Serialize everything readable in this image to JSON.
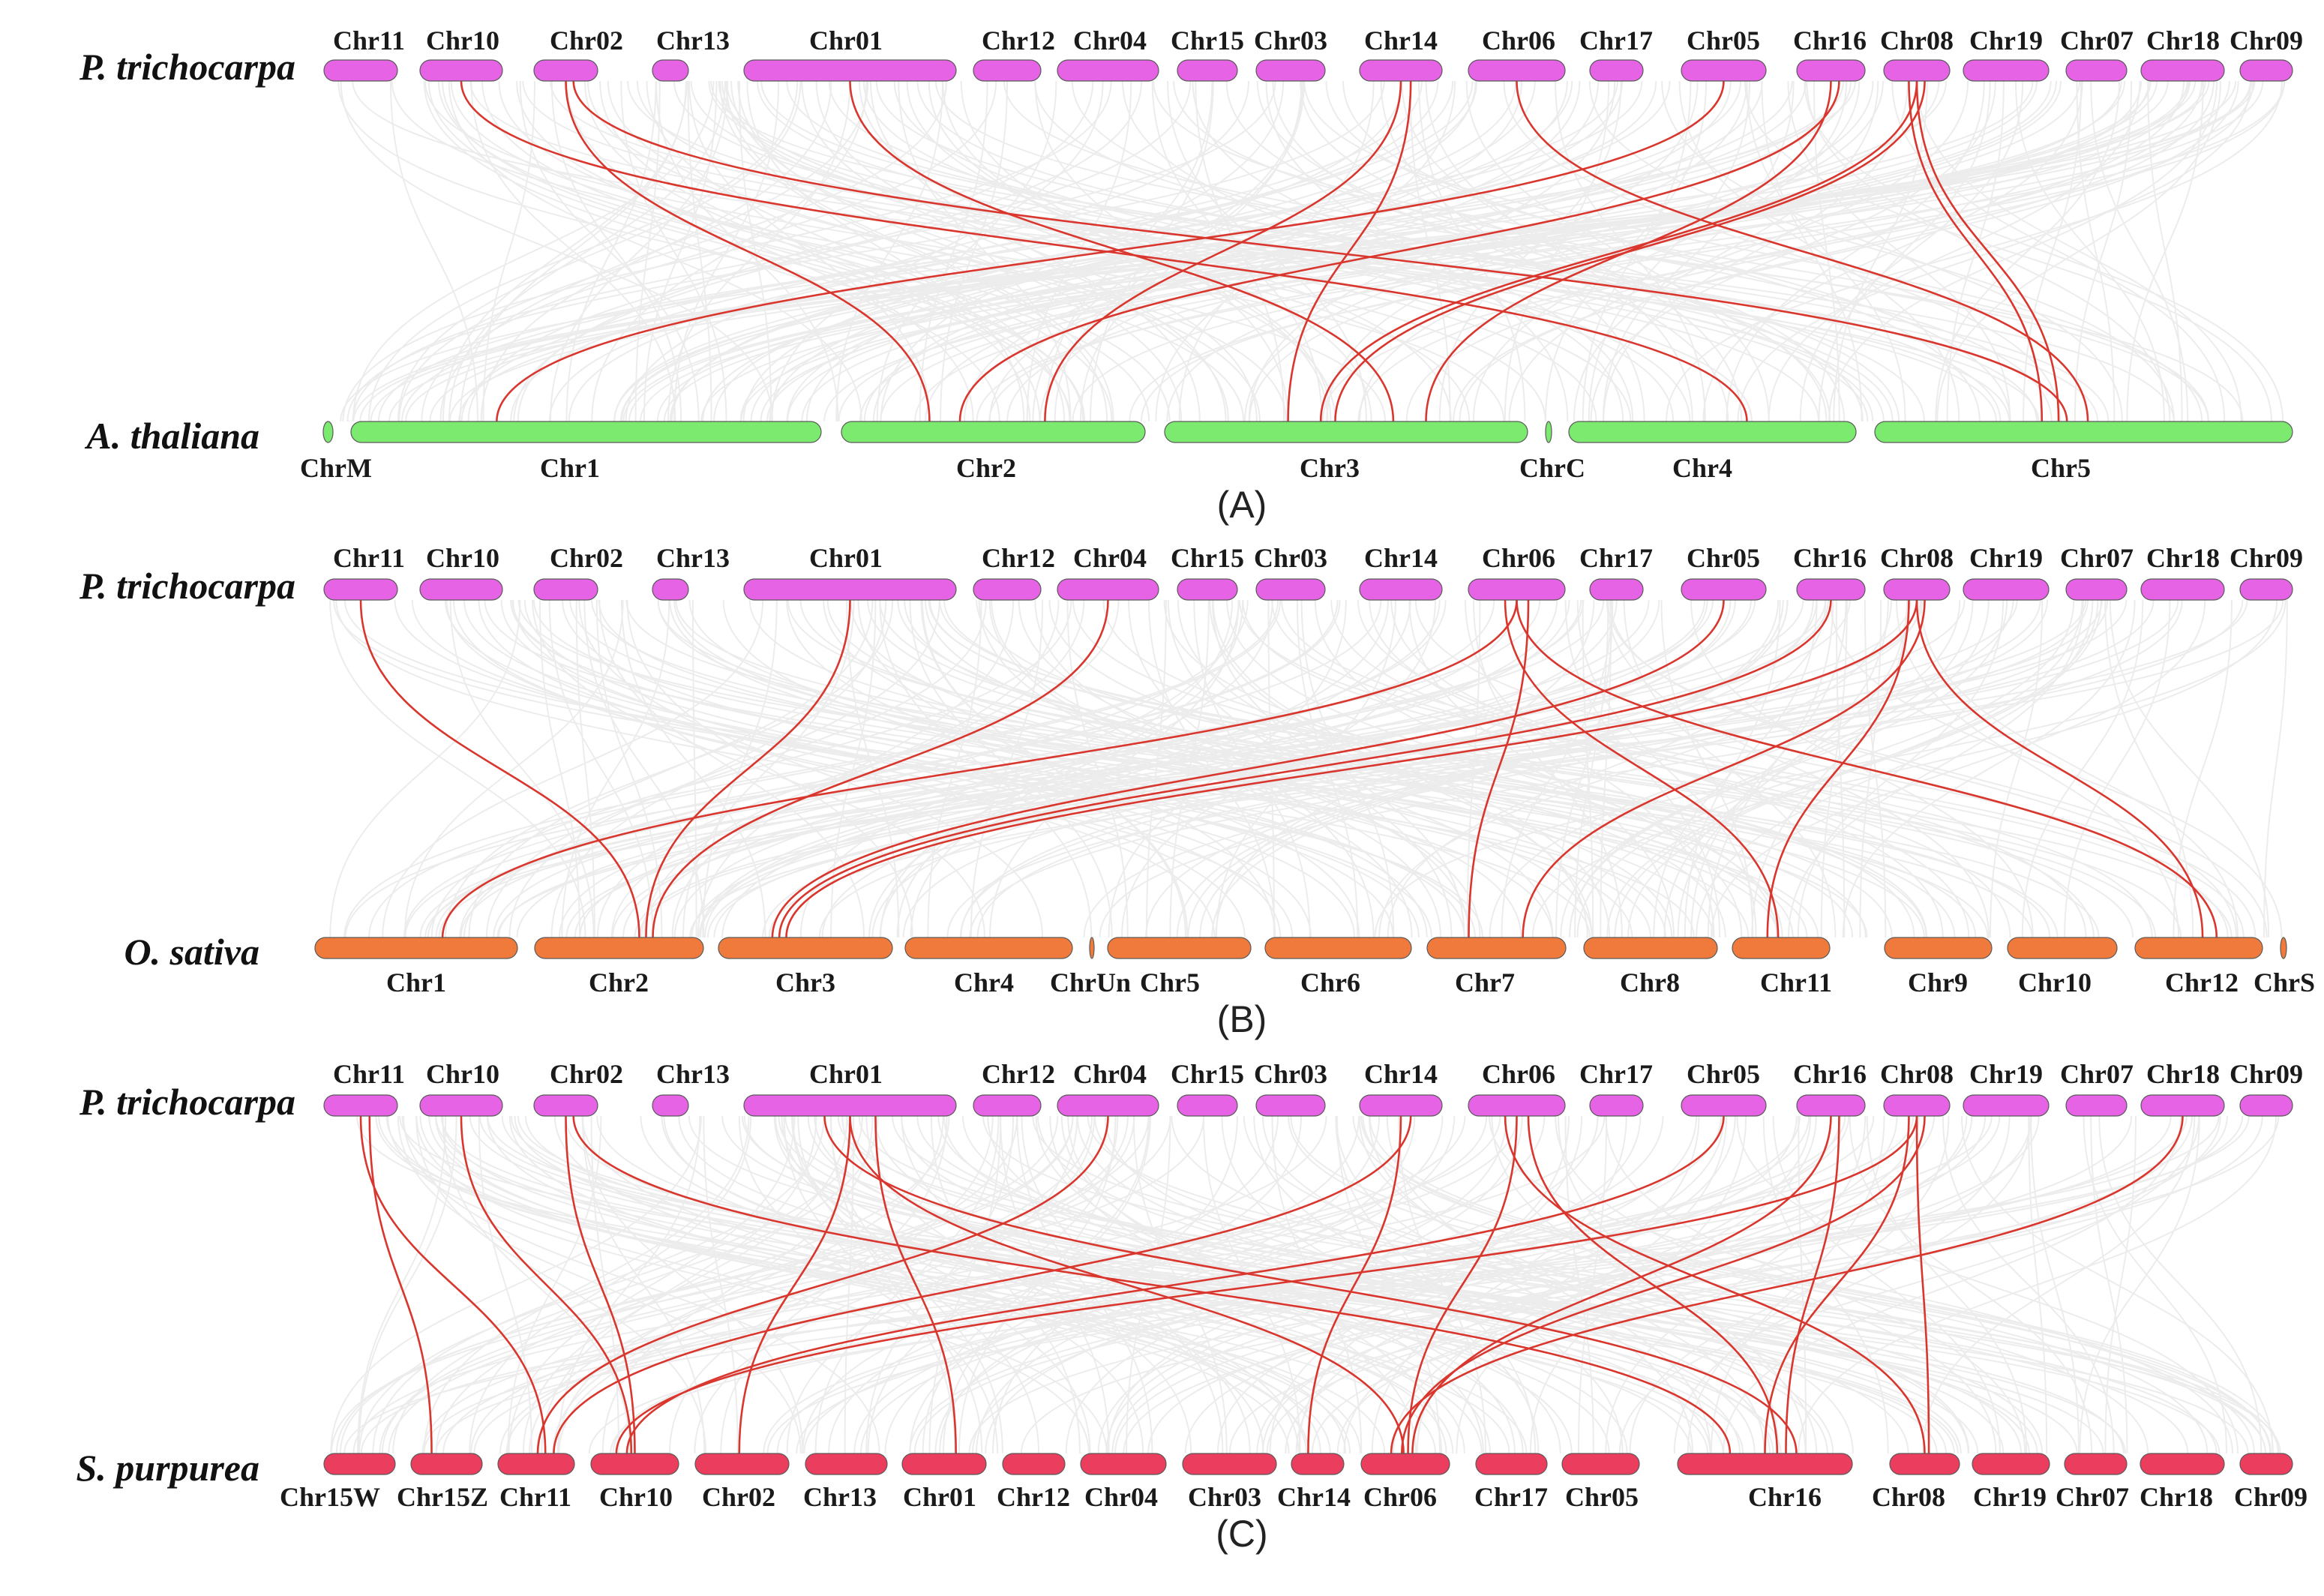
{
  "figure": {
    "panels": [
      {
        "id": "A",
        "label": "(A)",
        "top_species": "P. trichocarpa",
        "bottom_species": "A. thaliana",
        "colors": {
          "top": "#e663e6",
          "bottom": "#7bea6e",
          "background_links": "#dedede",
          "highlight_links": "#d9362e"
        },
        "top_chromosomes": [
          "Chr11",
          "Chr10",
          "Chr02",
          "Chr13",
          "Chr01",
          "Chr12",
          "Chr04",
          "Chr15",
          "Chr03",
          "Chr14",
          "Chr06",
          "Chr17",
          "Chr05",
          "Chr16",
          "Chr08",
          "Chr19",
          "Chr07",
          "Chr18",
          "Chr09"
        ],
        "bottom_chromosomes": [
          "ChrM",
          "Chr1",
          "Chr2",
          "Chr3",
          "ChrC",
          "Chr4",
          "Chr5"
        ],
        "links": [
          {
            "from": "Chr10",
            "to": "Chr4"
          },
          {
            "from": "Chr02",
            "to": "Chr2"
          },
          {
            "from": "Chr02",
            "to": "Chr5"
          },
          {
            "from": "Chr01",
            "to": "Chr3"
          },
          {
            "from": "Chr14",
            "to": "Chr2"
          },
          {
            "from": "Chr14",
            "to": "Chr3"
          },
          {
            "from": "Chr06",
            "to": "Chr5"
          },
          {
            "from": "Chr05",
            "to": "Chr1"
          },
          {
            "from": "Chr16",
            "to": "Chr3"
          },
          {
            "from": "Chr16",
            "to": "Chr2"
          },
          {
            "from": "Chr08",
            "to": "Chr3"
          },
          {
            "from": "Chr08",
            "to": "Chr3"
          },
          {
            "from": "Chr08",
            "to": "Chr5"
          },
          {
            "from": "Chr08",
            "to": "Chr5"
          }
        ]
      },
      {
        "id": "B",
        "label": "(B)",
        "top_species": "P. trichocarpa",
        "bottom_species": "O. sativa",
        "colors": {
          "top": "#e663e6",
          "bottom": "#f07a3c",
          "background_links": "#dedede",
          "highlight_links": "#d9362e"
        },
        "top_chromosomes": [
          "Chr11",
          "Chr10",
          "Chr02",
          "Chr13",
          "Chr01",
          "Chr12",
          "Chr04",
          "Chr15",
          "Chr03",
          "Chr14",
          "Chr06",
          "Chr17",
          "Chr05",
          "Chr16",
          "Chr08",
          "Chr19",
          "Chr07",
          "Chr18",
          "Chr09"
        ],
        "bottom_chromosomes": [
          "Chr1",
          "Chr2",
          "Chr3",
          "Chr4",
          "ChrUn",
          "Chr5",
          "Chr6",
          "Chr7",
          "Chr8",
          "Chr11",
          "Chr9",
          "Chr10",
          "Chr12",
          "ChrS"
        ],
        "links": [
          {
            "from": "Chr11",
            "to": "Chr2"
          },
          {
            "from": "Chr01",
            "to": "Chr2"
          },
          {
            "from": "Chr04",
            "to": "Chr2"
          },
          {
            "from": "Chr06",
            "to": "Chr1"
          },
          {
            "from": "Chr06",
            "to": "Chr7"
          },
          {
            "from": "Chr06",
            "to": "Chr11"
          },
          {
            "from": "Chr06",
            "to": "Chr12"
          },
          {
            "from": "Chr05",
            "to": "Chr3"
          },
          {
            "from": "Chr16",
            "to": "Chr3"
          },
          {
            "from": "Chr08",
            "to": "Chr3"
          },
          {
            "from": "Chr08",
            "to": "Chr7"
          },
          {
            "from": "Chr08",
            "to": "Chr11"
          },
          {
            "from": "Chr08",
            "to": "Chr12"
          }
        ]
      },
      {
        "id": "C",
        "label": "(C)",
        "top_species": "P. trichocarpa",
        "bottom_species": "S. purpurea",
        "colors": {
          "top": "#e663e6",
          "bottom": "#eb3d5d",
          "background_links": "#dedede",
          "highlight_links": "#d9362e"
        },
        "top_chromosomes": [
          "Chr11",
          "Chr10",
          "Chr02",
          "Chr13",
          "Chr01",
          "Chr12",
          "Chr04",
          "Chr15",
          "Chr03",
          "Chr14",
          "Chr06",
          "Chr17",
          "Chr05",
          "Chr16",
          "Chr08",
          "Chr19",
          "Chr07",
          "Chr18",
          "Chr09"
        ],
        "bottom_chromosomes": [
          "Chr15W",
          "Chr15Z",
          "Chr11",
          "Chr10",
          "Chr02",
          "Chr13",
          "Chr01",
          "Chr12",
          "Chr04",
          "Chr03",
          "Chr14",
          "Chr06",
          "Chr17",
          "Chr05",
          "Chr16",
          "Chr08",
          "Chr19",
          "Chr07",
          "Chr18",
          "Chr09"
        ],
        "links": [
          {
            "from": "Chr11",
            "to": "Chr11"
          },
          {
            "from": "Chr11",
            "to": "Chr15Z"
          },
          {
            "from": "Chr10",
            "to": "Chr10"
          },
          {
            "from": "Chr02",
            "to": "Chr10"
          },
          {
            "from": "Chr02",
            "to": "Chr16"
          },
          {
            "from": "Chr01",
            "to": "Chr02"
          },
          {
            "from": "Chr01",
            "to": "Chr01"
          },
          {
            "from": "Chr01",
            "to": "Chr16"
          },
          {
            "from": "Chr01",
            "to": "Chr06"
          },
          {
            "from": "Chr04",
            "to": "Chr11"
          },
          {
            "from": "Chr14",
            "to": "Chr14"
          },
          {
            "from": "Chr14",
            "to": "Chr11"
          },
          {
            "from": "Chr06",
            "to": "Chr06"
          },
          {
            "from": "Chr06",
            "to": "Chr16"
          },
          {
            "from": "Chr06",
            "to": "Chr08"
          },
          {
            "from": "Chr05",
            "to": "Chr10"
          },
          {
            "from": "Chr16",
            "to": "Chr06"
          },
          {
            "from": "Chr16",
            "to": "Chr16"
          },
          {
            "from": "Chr08",
            "to": "Chr10"
          },
          {
            "from": "Chr08",
            "to": "Chr06"
          },
          {
            "from": "Chr08",
            "to": "Chr16"
          },
          {
            "from": "Chr08",
            "to": "Chr08"
          },
          {
            "from": "Chr18",
            "to": "Chr06"
          }
        ]
      }
    ]
  }
}
